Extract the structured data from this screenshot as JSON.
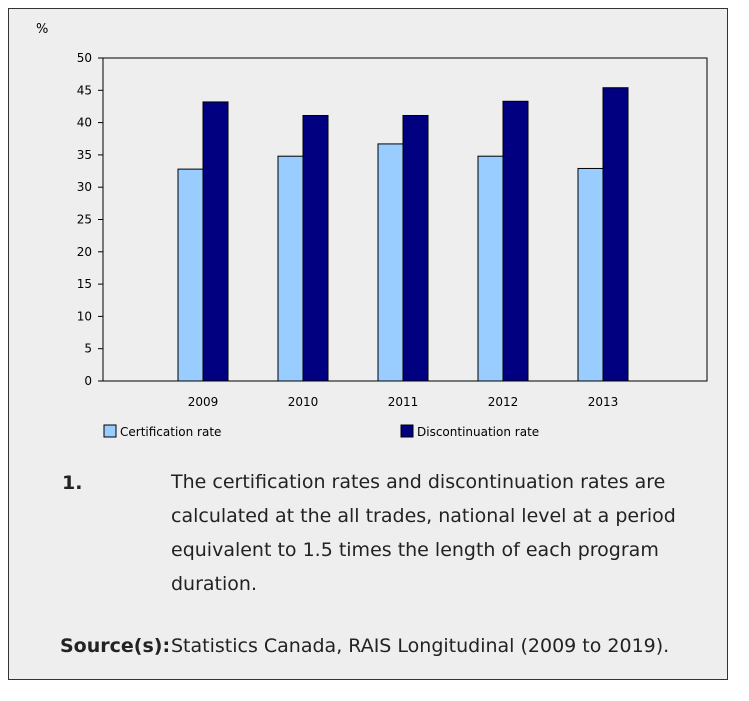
{
  "chart_data": {
    "type": "bar",
    "unit_label": "%",
    "categories": [
      "2009",
      "2010",
      "2011",
      "2012",
      "2013"
    ],
    "series": [
      {
        "name": "Certification rate",
        "values": [
          32.8,
          34.8,
          36.7,
          34.8,
          32.9
        ],
        "color": "#99ccff"
      },
      {
        "name": "Discontinuation rate",
        "values": [
          43.2,
          41.1,
          41.1,
          43.3,
          45.4
        ],
        "color": "#000080"
      }
    ],
    "ylim": [
      0,
      50
    ],
    "yticks": [
      0,
      5,
      10,
      15,
      20,
      25,
      30,
      35,
      40,
      45,
      50
    ],
    "grid": false,
    "legend_position": "bottom"
  },
  "notes": {
    "number": "1.",
    "text": "The certification rates and discontinuation rates are calculated at the all trades, national level at a period equivalent to 1.5 times the length of each program duration."
  },
  "source": {
    "label": "Source(s):",
    "text": "Statistics Canada, RAIS Longitudinal (2009 to 2019)."
  }
}
